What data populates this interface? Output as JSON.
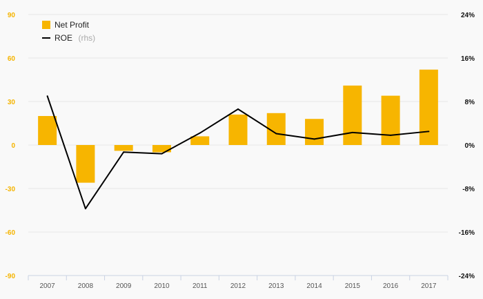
{
  "chart_data": {
    "type": "bar",
    "categories": [
      "2007",
      "2008",
      "2009",
      "2010",
      "2011",
      "2012",
      "2013",
      "2014",
      "2015",
      "2016",
      "2017"
    ],
    "series": [
      {
        "name": "Net Profit",
        "type": "bar",
        "axis": "left",
        "color": "#f7b500",
        "values": [
          20,
          -26,
          -4,
          -5,
          6,
          21,
          22,
          18,
          41,
          34,
          52
        ]
      },
      {
        "name": "ROE",
        "name_suffix": "(rhs)",
        "type": "line",
        "axis": "right",
        "color": "#000000",
        "values": [
          0.09,
          -0.117,
          -0.013,
          -0.016,
          0.022,
          0.066,
          0.021,
          0.011,
          0.023,
          0.018,
          0.025
        ]
      }
    ],
    "y_left": {
      "ylim": [
        -90,
        90
      ],
      "ticks": [
        90,
        60,
        30,
        0,
        -30,
        -60,
        -90
      ],
      "tick_labels": [
        "90",
        "60",
        "30",
        "0",
        "-30",
        "-60",
        "-90"
      ],
      "color": "#f5b400"
    },
    "y_right": {
      "ylim": [
        -0.24,
        0.24
      ],
      "ticks": [
        0.24,
        0.16,
        0.08,
        0,
        -0.08,
        -0.16,
        -0.24
      ],
      "tick_labels": [
        "24%",
        "16%",
        "8%",
        "0%",
        "-8%",
        "-16%",
        "-24%"
      ],
      "color": "#111111"
    },
    "legend": {
      "position": "top-left",
      "entries": [
        {
          "label": "Net Profit",
          "suffix": ""
        },
        {
          "label": "ROE",
          "suffix": "(rhs)"
        }
      ]
    },
    "grid": true
  }
}
